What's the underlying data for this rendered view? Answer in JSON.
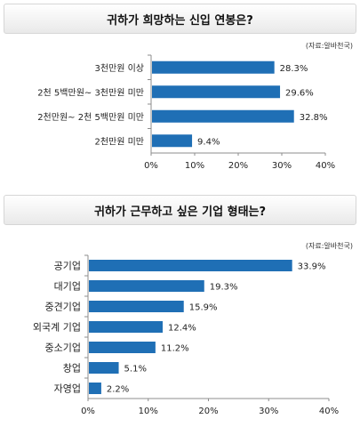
{
  "chart_data": [
    {
      "type": "bar",
      "orientation": "horizontal",
      "title": "귀하가 희망하는 신입 연봉은?",
      "source": "(자료:알바천국)",
      "categories": [
        "3천만원 이상",
        "2천 5백만원~ 3천만원 미만",
        "2천만원~ 2천 5백만원 미만",
        "2천만원 미만"
      ],
      "values": [
        28.3,
        29.6,
        32.8,
        9.4
      ],
      "value_labels": [
        "28.3%",
        "29.6%",
        "32.8%",
        "9.4%"
      ],
      "xlim": [
        0,
        40
      ],
      "xticks": [
        "0%",
        "10%",
        "20%",
        "30%",
        "40%"
      ],
      "bar_color": "#1f6fb5",
      "grid": false
    },
    {
      "type": "bar",
      "orientation": "horizontal",
      "title": "귀하가 근무하고 싶은 기업 형태는?",
      "source": "(자료:알바천국)",
      "categories": [
        "공기업",
        "대기업",
        "중견기업",
        "외국계 기업",
        "중소기업",
        "창업",
        "자영업"
      ],
      "values": [
        33.9,
        19.3,
        15.9,
        12.4,
        11.2,
        5.1,
        2.2
      ],
      "value_labels": [
        "33.9%",
        "19.3%",
        "15.9%",
        "12.4%",
        "11.2%",
        "5.1%",
        "2.2%"
      ],
      "xlim": [
        0,
        40
      ],
      "xticks": [
        "0%",
        "10%",
        "20%",
        "30%",
        "40%"
      ],
      "bar_color": "#1f6fb5",
      "grid": false
    }
  ]
}
